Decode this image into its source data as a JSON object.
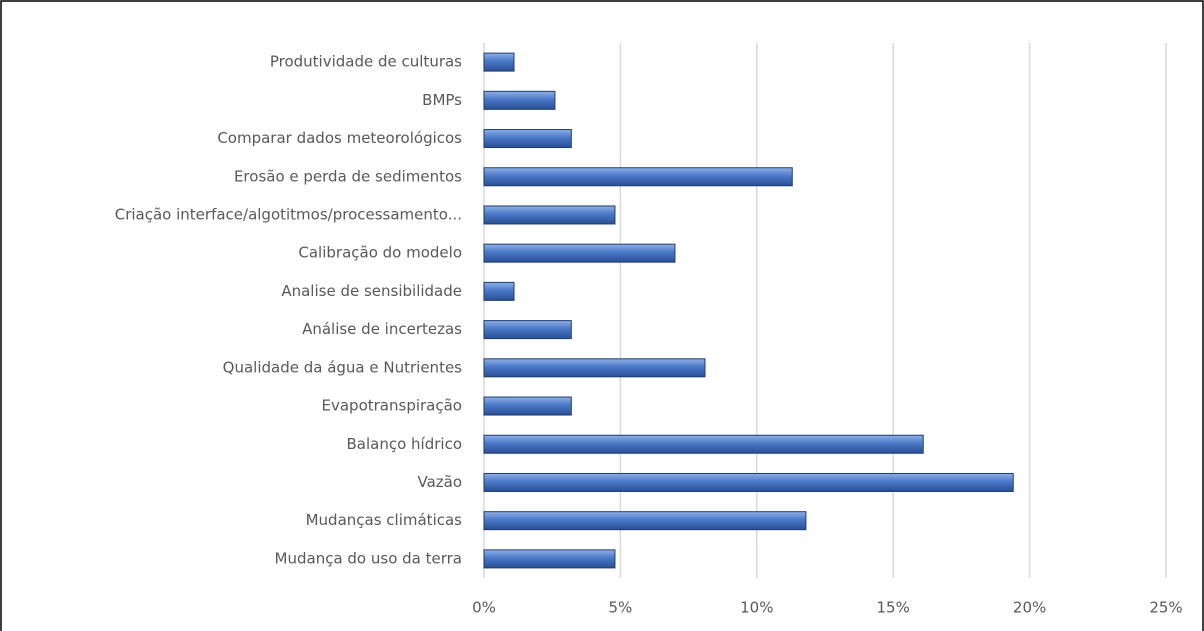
{
  "chart_data": {
    "type": "bar",
    "orientation": "horizontal",
    "categories": [
      "Produtividade de culturas",
      "BMPs",
      "Comparar dados meteorológicos",
      "Erosão e perda de sedimentos",
      "Criação interface/algotitmos/processamento...",
      "Calibração do modelo",
      "Analise de sensibilidade",
      "Análise de incertezas",
      "Qualidade da água e Nutrientes",
      "Evapotranspiração",
      "Balanço hídrico",
      "Vazão",
      "Mudanças climáticas",
      "Mudança do uso da terra"
    ],
    "values": [
      1.1,
      2.6,
      3.2,
      11.3,
      4.8,
      7.0,
      1.1,
      3.2,
      8.1,
      3.2,
      16.1,
      19.4,
      11.8,
      4.8
    ],
    "color": "#4472c4",
    "xlim": [
      0,
      25
    ],
    "xticks": [
      {
        "value": 0,
        "label": "0%"
      },
      {
        "value": 5,
        "label": "5%"
      },
      {
        "value": 10,
        "label": "10%"
      },
      {
        "value": 15,
        "label": "15%"
      },
      {
        "value": 20,
        "label": "20%"
      },
      {
        "value": 25,
        "label": "25%"
      }
    ],
    "grid": true
  }
}
